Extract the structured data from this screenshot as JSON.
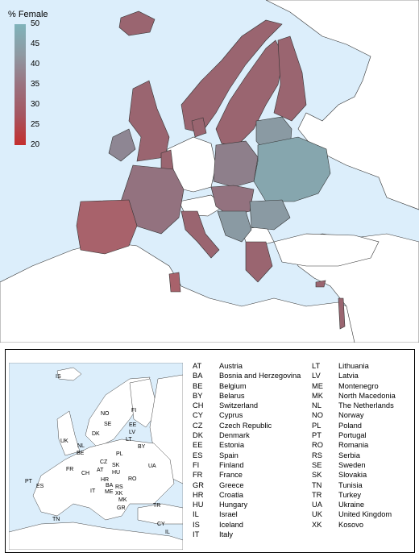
{
  "legend": {
    "title": "% Female",
    "ticks": [
      "50",
      "45",
      "40",
      "35",
      "30",
      "25",
      "20"
    ],
    "color_scale": [
      "#7fb3ba",
      "#8e9aa3",
      "#9a7380",
      "#a55661",
      "#c42e2e"
    ]
  },
  "colors": {
    "sea": "#dceefb",
    "land_nodata": "#ffffff",
    "border": "#333333"
  },
  "country_key": [
    {
      "code": "AT",
      "name": "Austria"
    },
    {
      "code": "BA",
      "name": "Bosnia and Herzegovina"
    },
    {
      "code": "BE",
      "name": "Belgium"
    },
    {
      "code": "BY",
      "name": "Belarus"
    },
    {
      "code": "CH",
      "name": "Switzerland"
    },
    {
      "code": "CY",
      "name": "Cyprus"
    },
    {
      "code": "CZ",
      "name": "Czech Republic"
    },
    {
      "code": "DK",
      "name": "Denmark"
    },
    {
      "code": "EE",
      "name": "Estonia"
    },
    {
      "code": "ES",
      "name": "Spain"
    },
    {
      "code": "FI",
      "name": "Finland"
    },
    {
      "code": "FR",
      "name": "France"
    },
    {
      "code": "GR",
      "name": "Greece"
    },
    {
      "code": "HR",
      "name": "Croatia"
    },
    {
      "code": "HU",
      "name": "Hungary"
    },
    {
      "code": "IL",
      "name": "Israel"
    },
    {
      "code": "IS",
      "name": "Iceland"
    },
    {
      "code": "IT",
      "name": "Italy"
    },
    {
      "code": "LT",
      "name": "Lithuania"
    },
    {
      "code": "LV",
      "name": "Latvia"
    },
    {
      "code": "ME",
      "name": "Montenegro"
    },
    {
      "code": "MK",
      "name": "North Macedonia"
    },
    {
      "code": "NL",
      "name": "The Netherlands"
    },
    {
      "code": "NO",
      "name": "Norway"
    },
    {
      "code": "PL",
      "name": "Poland"
    },
    {
      "code": "PT",
      "name": "Portugal"
    },
    {
      "code": "RO",
      "name": "Romania"
    },
    {
      "code": "RS",
      "name": "Serbia"
    },
    {
      "code": "SE",
      "name": "Sweden"
    },
    {
      "code": "SK",
      "name": "Slovakia"
    },
    {
      "code": "TN",
      "name": "Tunisia"
    },
    {
      "code": "TR",
      "name": "Turkey"
    },
    {
      "code": "UA",
      "name": "Ukraine"
    },
    {
      "code": "UK",
      "name": "United Kingdom"
    },
    {
      "code": "XK",
      "name": "Kosovo"
    }
  ],
  "inset_labels": [
    "IS",
    "NO",
    "SE",
    "FI",
    "EE",
    "LV",
    "LT",
    "DK",
    "UK",
    "NL",
    "BE",
    "BY",
    "PL",
    "CZ",
    "SK",
    "UA",
    "FR",
    "CH",
    "AT",
    "HU",
    "RO",
    "HR",
    "BA",
    "RS",
    "ME",
    "XK",
    "MK",
    "IT",
    "ES",
    "PT",
    "GR",
    "TR",
    "TN",
    "CY",
    "IL"
  ]
}
